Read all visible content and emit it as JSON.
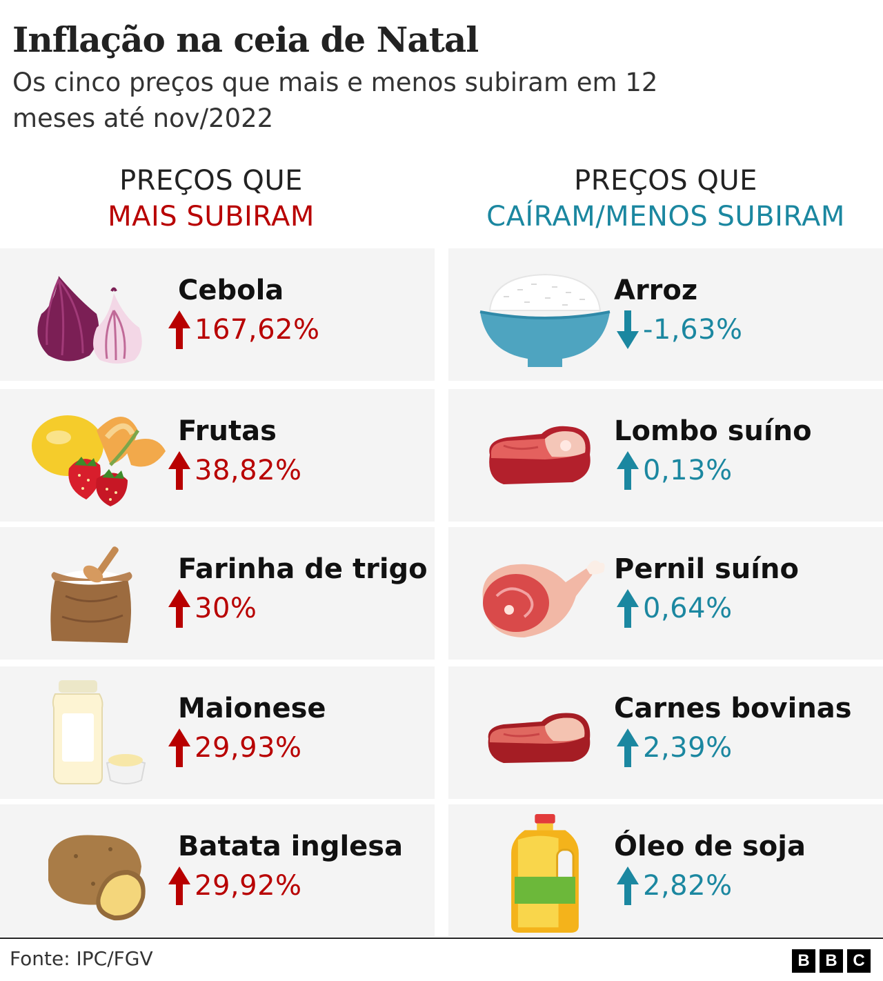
{
  "header": {
    "title": "Inflação na ceia de Natal",
    "subtitle": "Os cinco preços que mais e menos subiram em 12 meses até nov/2022"
  },
  "columns": {
    "left": {
      "line1": "PREÇOS QUE",
      "line2": "MAIS SUBIRAM"
    },
    "right": {
      "line1": "PREÇOS QUE",
      "line2": "CAÍRAM/MENOS SUBIRAM"
    }
  },
  "colors": {
    "rise": "#b80000",
    "fall_or_small": "#1b87a0",
    "card_bg": "#f4f4f4"
  },
  "chart_data": {
    "type": "table",
    "title": "Inflação na ceia de Natal",
    "subtitle": "Os cinco preços que mais e menos subiram em 12 meses até nov/2022",
    "groups": [
      {
        "name": "MAIS SUBIRAM",
        "items": [
          {
            "label": "Cebola",
            "value": 167.62,
            "display": "167,62%",
            "direction": "up",
            "icon": "onion-icon"
          },
          {
            "label": "Frutas",
            "value": 38.82,
            "display": "38,82%",
            "direction": "up",
            "icon": "fruits-icon"
          },
          {
            "label": "Farinha de trigo",
            "value": 30,
            "display": "30%",
            "direction": "up",
            "icon": "flour-sack-icon"
          },
          {
            "label": "Maionese",
            "value": 29.93,
            "display": "29,93%",
            "direction": "up",
            "icon": "mayonnaise-jar-icon"
          },
          {
            "label": "Batata inglesa",
            "value": 29.92,
            "display": "29,92%",
            "direction": "up",
            "icon": "potato-icon"
          }
        ]
      },
      {
        "name": "CAÍRAM/MENOS SUBIRAM",
        "items": [
          {
            "label": "Arroz",
            "value": -1.63,
            "display": "-1,63%",
            "direction": "down",
            "icon": "rice-bowl-icon"
          },
          {
            "label": "Lombo suíno",
            "value": 0.13,
            "display": "0,13%",
            "direction": "up",
            "icon": "pork-loin-icon"
          },
          {
            "label": "Pernil suíno",
            "value": 0.64,
            "display": "0,64%",
            "direction": "up",
            "icon": "pork-leg-icon"
          },
          {
            "label": "Carnes bovinas",
            "value": 2.39,
            "display": "2,39%",
            "direction": "up",
            "icon": "beef-steak-icon"
          },
          {
            "label": "Óleo de soja",
            "value": 2.82,
            "display": "2,82%",
            "direction": "up",
            "icon": "oil-bottle-icon"
          }
        ]
      }
    ]
  },
  "footer": {
    "source": "Fonte: IPC/FGV",
    "logo_letters": [
      "B",
      "B",
      "C"
    ]
  }
}
